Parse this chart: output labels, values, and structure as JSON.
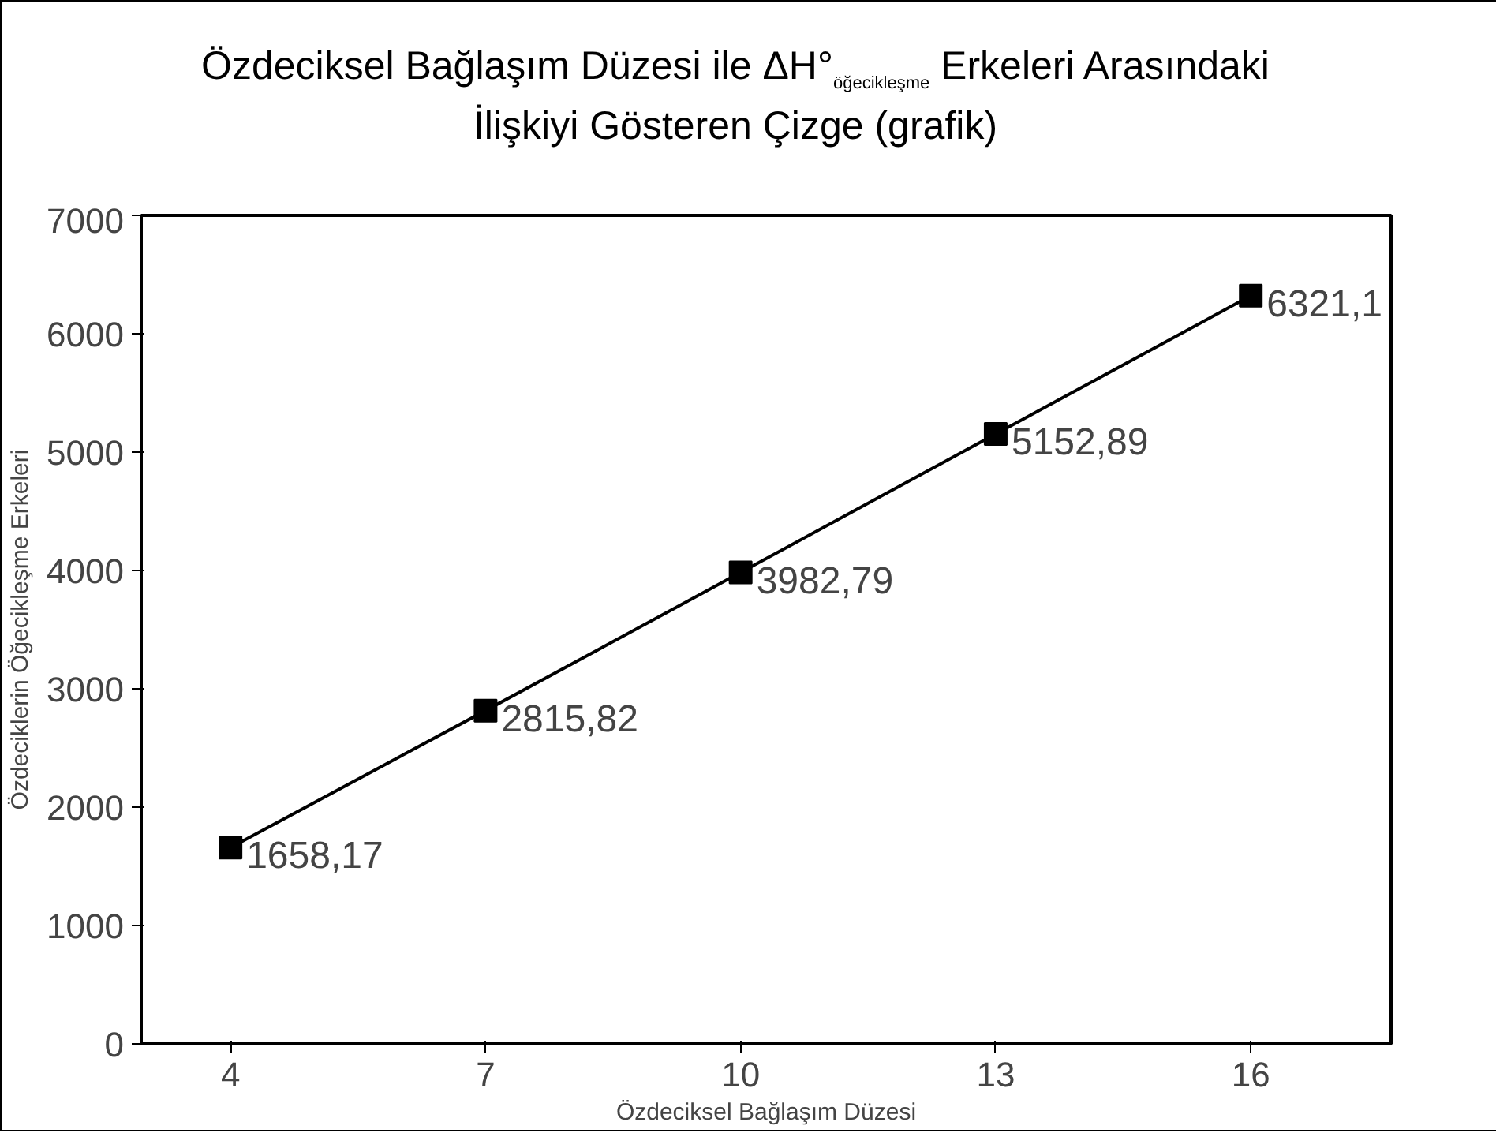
{
  "chart_data": {
    "type": "line",
    "title": "Özdeciksel Bağlaşım Düzesi ile ΔH°$_{öğecikleşme}$ Erkeleri Arasındaki İlişkiyi Gösteren Çizge (grafik)",
    "xlabel": "Özdeciksel Bağlaşım Düzesi",
    "ylabel": "Özdeciklerin Öğecikleşme Erkeleri",
    "categories": [
      "4",
      "7",
      "10",
      "13",
      "16"
    ],
    "series": [
      {
        "color": "#000000",
        "values": [
          1658.17,
          2815.82,
          3982.79,
          5152.89,
          6321.1
        ],
        "value_labels": [
          "1658,17",
          "2815,82",
          "3982,79",
          "5152,89",
          "6321,1"
        ]
      }
    ],
    "ylim": [
      0,
      7000
    ],
    "yticks": [
      0,
      1000,
      2000,
      3000,
      4000,
      5000,
      6000,
      7000
    ],
    "marker": "square",
    "line_style": "solid",
    "grid": false
  }
}
